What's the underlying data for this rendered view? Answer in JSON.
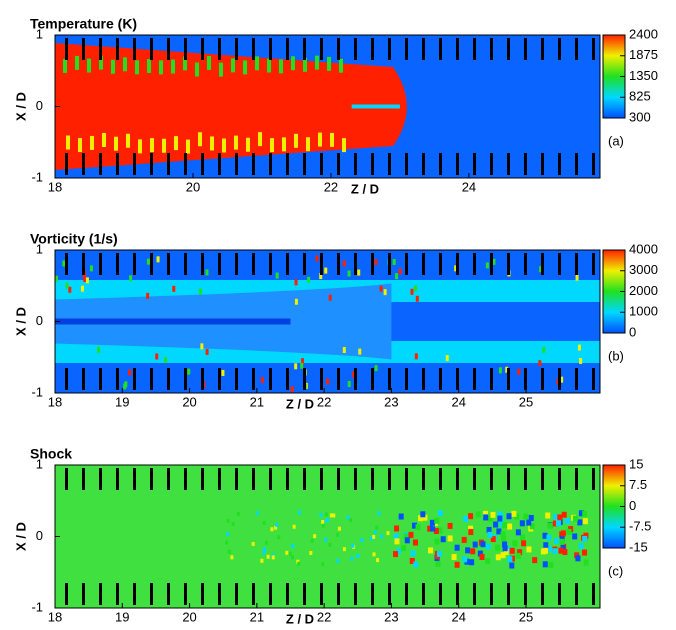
{
  "chart_data": [
    {
      "type": "contour",
      "title": "Temperature (K)",
      "panel_label": "(a)",
      "x_label": "Z / D",
      "y_label": "X / D",
      "xlim": [
        18,
        25.9
      ],
      "xticks": [
        18,
        20,
        22,
        24
      ],
      "ylim": [
        -1,
        1
      ],
      "yticks": [
        -1,
        0,
        1
      ],
      "colorbar": {
        "ticks": [
          300,
          825,
          1350,
          1875,
          2400
        ],
        "colors": [
          "#0050ff",
          "#00d8ff",
          "#20e020",
          "#f0f000",
          "#ff2000"
        ]
      }
    },
    {
      "type": "contour",
      "title": "Vorticity (1/s)",
      "panel_label": "(b)",
      "x_label": "Z / D",
      "y_label": "X / D",
      "xlim": [
        18,
        26.1
      ],
      "xticks": [
        18,
        19,
        20,
        21,
        22,
        23,
        24,
        25
      ],
      "ylim": [
        -1,
        1
      ],
      "yticks": [
        -1,
        0,
        1
      ],
      "colorbar": {
        "ticks": [
          0,
          1000,
          2000,
          3000,
          4000
        ],
        "colors": [
          "#0050ff",
          "#00d8ff",
          "#20e020",
          "#f0f000",
          "#ff2000"
        ]
      }
    },
    {
      "type": "contour",
      "title": "Shock",
      "panel_label": "(c)",
      "x_label": "Z / D",
      "y_label": "X / D",
      "xlim": [
        18,
        26.1
      ],
      "xticks": [
        18,
        19,
        20,
        21,
        22,
        23,
        24,
        25
      ],
      "ylim": [
        -1,
        1
      ],
      "yticks": [
        -1,
        0,
        1
      ],
      "colorbar": {
        "ticks": [
          -15,
          -7.5,
          0,
          7.5,
          15
        ],
        "colors": [
          "#0050ff",
          "#00d8ff",
          "#20e020",
          "#f0f000",
          "#ff2000"
        ]
      }
    }
  ]
}
